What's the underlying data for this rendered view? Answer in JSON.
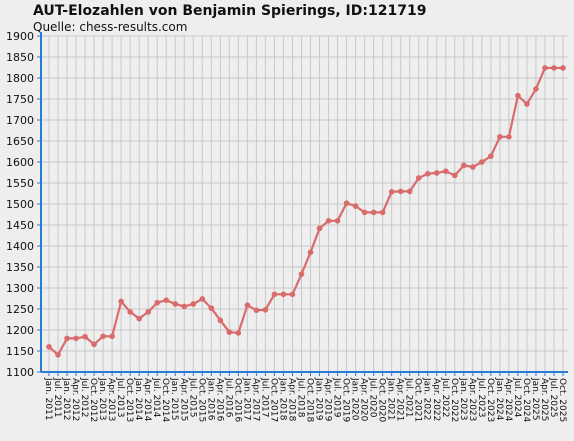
{
  "chart_data": {
    "type": "line",
    "title": "AUT-Elozahlen von Benjamin Spierings, ID:121719",
    "subtitle": "Quelle: chess-results.com",
    "xlabel": "",
    "ylabel": "",
    "ylim": [
      1100,
      1900
    ],
    "yticks": [
      1100,
      1150,
      1200,
      1250,
      1300,
      1350,
      1400,
      1450,
      1500,
      1550,
      1600,
      1650,
      1700,
      1750,
      1800,
      1850,
      1900
    ],
    "grid": true,
    "line_color": "#d96b6b",
    "categories": [
      "Jan. 2011",
      "Jul. 2011",
      "Jan. 2012",
      "Apr. 2012",
      "Jul. 2012",
      "Oct. 2012",
      "Jan. 2013",
      "Apr. 2013",
      "Jul. 2013",
      "Oct. 2013",
      "Jan. 2014",
      "Apr. 2014",
      "Jul. 2014",
      "Oct. 2014",
      "Jan. 2015",
      "Apr. 2015",
      "Jul. 2015",
      "Oct. 2015",
      "Jan. 2016",
      "Apr. 2016",
      "Jul. 2016",
      "Oct. 2016",
      "Jan. 2017",
      "Apr. 2017",
      "Jul. 2017",
      "Oct. 2017",
      "Jan. 2018",
      "Apr. 2018",
      "Jul. 2018",
      "Oct. 2018",
      "Jan. 2019",
      "Apr. 2019",
      "Jul. 2019",
      "Oct. 2019",
      "Jan. 2020",
      "Apr. 2020",
      "Jul. 2020",
      "Oct. 2020",
      "Jan. 2021",
      "Apr. 2021",
      "Jul. 2021",
      "Oct. 2021",
      "Jan. 2022",
      "Apr. 2022",
      "Jul. 2022",
      "Oct. 2022",
      "Jan. 2023",
      "Apr. 2023",
      "Jul. 2023",
      "Oct. 2023",
      "Jan. 2024",
      "Apr. 2024",
      "Jul. 2024",
      "Oct. 2024",
      "Jan. 2025",
      "Apr. 2025",
      "Jul. 2025",
      "Oct. 2025"
    ],
    "series": [
      {
        "values": [
          1160,
          1141,
          1180,
          1180,
          1184,
          1166,
          1185,
          1185,
          1268,
          1243,
          1227,
          1243,
          1265,
          1271,
          1262,
          1256,
          1262,
          1274,
          1252,
          1223,
          1195,
          1193,
          1259,
          1247,
          1248,
          1285,
          1285,
          1285,
          1333,
          1385,
          1442,
          1460,
          1460,
          1502,
          1495,
          1480,
          1480,
          1480,
          1529,
          1530,
          1530,
          1562,
          1572,
          1574,
          1578,
          1568,
          1592,
          1588,
          1600,
          1614,
          1660,
          1660,
          1758,
          1738,
          1774,
          1824,
          1824,
          1824
        ]
      }
    ]
  }
}
